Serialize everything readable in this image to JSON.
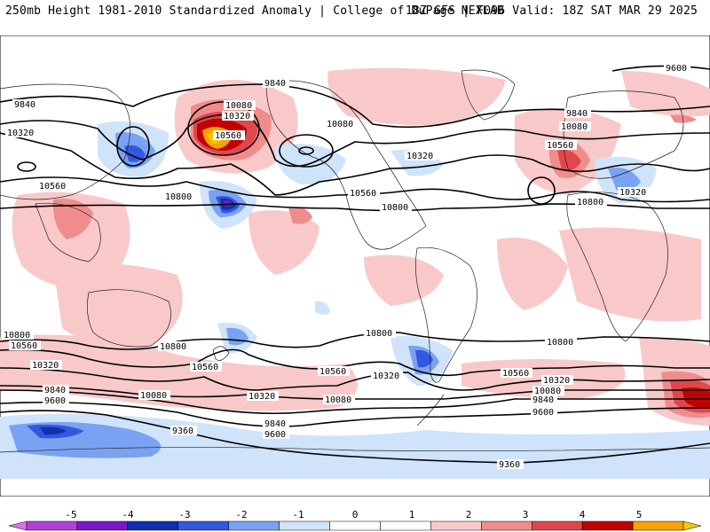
{
  "header": {
    "left_title": "250mb Height 1981-2010 Standardized Anomaly | College of DuPage NEXLAB",
    "right_title": "18Z GFS | F096 Valid: 18Z SAT MAR 29 2025"
  },
  "contour_labels": [
    {
      "id": "c9840-nw",
      "text": "9840"
    },
    {
      "id": "c10320-w",
      "text": "10320"
    },
    {
      "id": "c10560-w",
      "text": "10560"
    },
    {
      "id": "c9840-n",
      "text": "9840"
    },
    {
      "id": "c10080-np",
      "text": "10080"
    },
    {
      "id": "c10320-np",
      "text": "10320"
    },
    {
      "id": "c10560-np",
      "text": "10560"
    },
    {
      "id": "c10800-np",
      "text": "10800"
    },
    {
      "id": "c10080-na",
      "text": "10080"
    },
    {
      "id": "c10320-na",
      "text": "10320"
    },
    {
      "id": "c10560-na",
      "text": "10560"
    },
    {
      "id": "c10800-na",
      "text": "10800"
    },
    {
      "id": "c9600-ne",
      "text": "9600"
    },
    {
      "id": "c9840-ne",
      "text": "9840"
    },
    {
      "id": "c10080-ne",
      "text": "10080"
    },
    {
      "id": "c10560-eu",
      "text": "10560"
    },
    {
      "id": "c10320-eu",
      "text": "10320"
    },
    {
      "id": "c10800-eu",
      "text": "10800"
    },
    {
      "id": "c10800-sw",
      "text": "10800"
    },
    {
      "id": "c10560-sw",
      "text": "10560"
    },
    {
      "id": "c10320-sw",
      "text": "10320"
    },
    {
      "id": "c9840-sw",
      "text": "9840"
    },
    {
      "id": "c9600-sw",
      "text": "9600"
    },
    {
      "id": "c10080-sa",
      "text": "10080"
    },
    {
      "id": "c10800-aus",
      "text": "10800"
    },
    {
      "id": "c10560-aus",
      "text": "10560"
    },
    {
      "id": "c10320-sp",
      "text": "10320"
    },
    {
      "id": "c10080-sp",
      "text": "10080"
    },
    {
      "id": "c9840-sp",
      "text": "9840"
    },
    {
      "id": "c9600-sp",
      "text": "9600"
    },
    {
      "id": "c9360-sp",
      "text": "9360"
    },
    {
      "id": "c10800-sam",
      "text": "10800"
    },
    {
      "id": "c10560-sam",
      "text": "10560"
    },
    {
      "id": "c10320-sam",
      "text": "10320"
    },
    {
      "id": "c10800-saf",
      "text": "10800"
    },
    {
      "id": "c10560-saf",
      "text": "10560"
    },
    {
      "id": "c10320-saf",
      "text": "10320"
    },
    {
      "id": "c10080-saf",
      "text": "10080"
    },
    {
      "id": "c9840-saf",
      "text": "9840"
    },
    {
      "id": "c9600-saf",
      "text": "9600"
    },
    {
      "id": "c9360-so",
      "text": "9360"
    }
  ],
  "colorbar": {
    "ticks": [
      "-5",
      "-4",
      "-3",
      "-2",
      "-1",
      "0",
      "1",
      "2",
      "3",
      "4",
      "5"
    ],
    "colors": [
      "#b340d8",
      "#7a18c8",
      "#1030b0",
      "#3358e0",
      "#7aa2f2",
      "#cfe3fb",
      "#ffffff",
      "#ffffff",
      "#f9c9c9",
      "#f08c8c",
      "#e0474c",
      "#c20000",
      "#f5a300"
    ],
    "min_arrow_color": "#e070f0",
    "max_arrow_color": "#f5c800"
  }
}
